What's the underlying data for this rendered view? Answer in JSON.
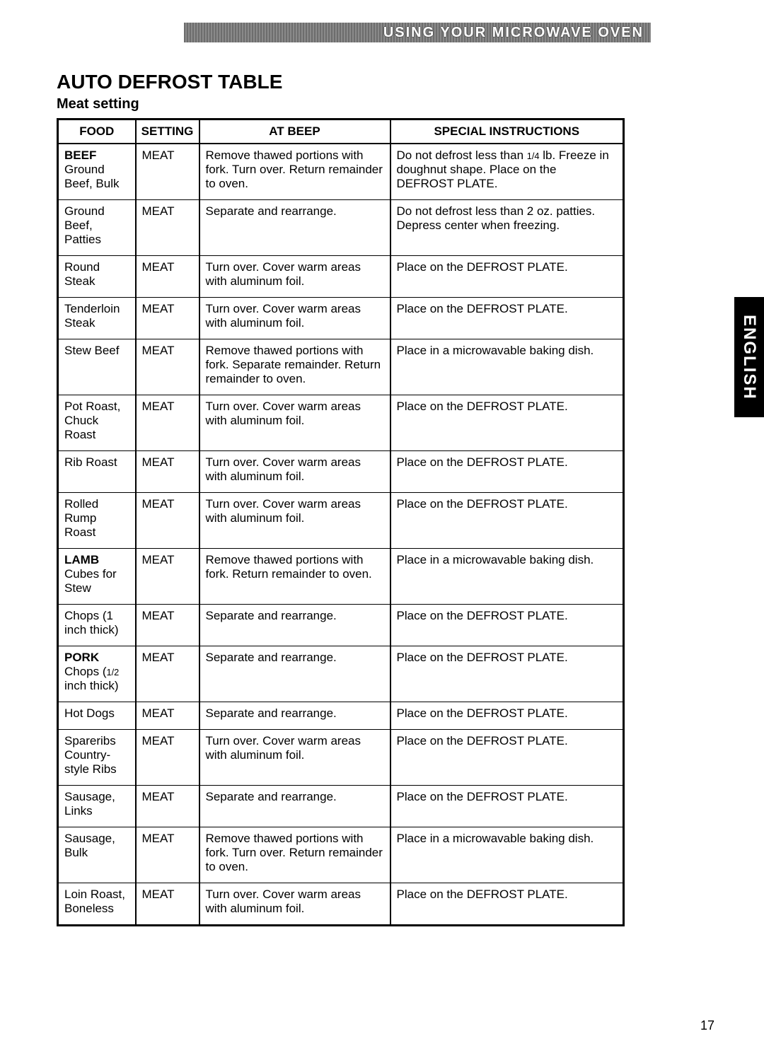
{
  "header_bar": "USING YOUR MICROWAVE OVEN",
  "lang_tab": "ENGLISH",
  "title": "AUTO DEFROST TABLE",
  "subtitle": "Meat setting",
  "page_number": "17",
  "columns": [
    "FOOD",
    "SETTING",
    "AT BEEP",
    "SPECIAL INSTRUCTIONS"
  ],
  "rows": [
    {
      "category": "BEEF",
      "food": "Ground Beef, Bulk",
      "setting": "MEAT",
      "beep": "Remove thawed portions with fork. Turn over. Return remainder to oven.",
      "instr_html": "Do not defrost less than <span class='frac'>1/4</span> lb. Freeze in doughnut shape. Place on the DEFROST PLATE.",
      "sep": false
    },
    {
      "food": "Ground Beef, Patties",
      "setting": "MEAT",
      "beep": "Separate and rearrange.",
      "instr": "Do not defrost less than 2 oz. patties. Depress center when freezing.",
      "sep": true
    },
    {
      "food": "Round Steak",
      "setting": "MEAT",
      "beep": "Turn over. Cover warm areas with aluminum foil.",
      "instr": "Place on the DEFROST PLATE.",
      "sep": true
    },
    {
      "food": "Tenderloin Steak",
      "setting": "MEAT",
      "beep": "Turn over. Cover warm areas with aluminum foil.",
      "instr": "Place on the DEFROST PLATE.",
      "sep": true
    },
    {
      "food": "Stew Beef",
      "setting": "MEAT",
      "beep": "Remove thawed portions with fork. Separate remainder. Return remainder to oven.",
      "instr": "Place in a microwavable baking dish.",
      "sep": true
    },
    {
      "food": "Pot Roast, Chuck Roast",
      "setting": "MEAT",
      "beep": "Turn over. Cover warm areas with aluminum foil.",
      "instr": "Place on the DEFROST PLATE.",
      "sep": true
    },
    {
      "food": "Rib Roast",
      "setting": "MEAT",
      "beep": "Turn over. Cover warm areas with aluminum foil.",
      "instr": "Place on the DEFROST PLATE.",
      "sep": true
    },
    {
      "food": "Rolled Rump Roast",
      "setting": "MEAT",
      "beep": "Turn over. Cover warm areas with aluminum foil.",
      "instr": "Place on the DEFROST PLATE.",
      "sep": true
    },
    {
      "category": "LAMB",
      "food": "Cubes for Stew",
      "setting": "MEAT",
      "beep": "Remove thawed portions with fork. Return remainder to oven.",
      "instr": "Place in a microwavable baking dish.",
      "sep": true
    },
    {
      "food": "Chops (1 inch thick)",
      "setting": "MEAT",
      "beep": "Separate and rearrange.",
      "instr": "Place on the DEFROST PLATE.",
      "sep": true
    },
    {
      "category": "PORK",
      "food_html": "Chops (<span class='frac'>1/2</span> inch thick)",
      "setting": "MEAT",
      "beep": "Separate and rearrange.",
      "instr": "Place on the DEFROST PLATE.",
      "sep": true
    },
    {
      "food": "Hot Dogs",
      "setting": "MEAT",
      "beep": "Separate and rearrange.",
      "instr": "Place on the DEFROST PLATE.",
      "sep": true
    },
    {
      "food": "Spareribs Country-style Ribs",
      "setting": "MEAT",
      "beep": "Turn over. Cover warm areas with aluminum foil.",
      "instr": "Place on the DEFROST PLATE.",
      "sep": true
    },
    {
      "food": "Sausage, Links",
      "setting": "MEAT",
      "beep": "Separate and rearrange.",
      "instr": "Place on the DEFROST PLATE.",
      "sep": true
    },
    {
      "food": "Sausage, Bulk",
      "setting": "MEAT",
      "beep": "Remove thawed portions with fork. Turn over. Return remainder to oven.",
      "instr": "Place in a microwavable baking dish.",
      "sep": true
    },
    {
      "food": "Loin Roast, Boneless",
      "setting": "MEAT",
      "beep": "Turn over. Cover warm areas with aluminum foil.",
      "instr": "Place on the DEFROST PLATE.",
      "sep": true
    }
  ]
}
